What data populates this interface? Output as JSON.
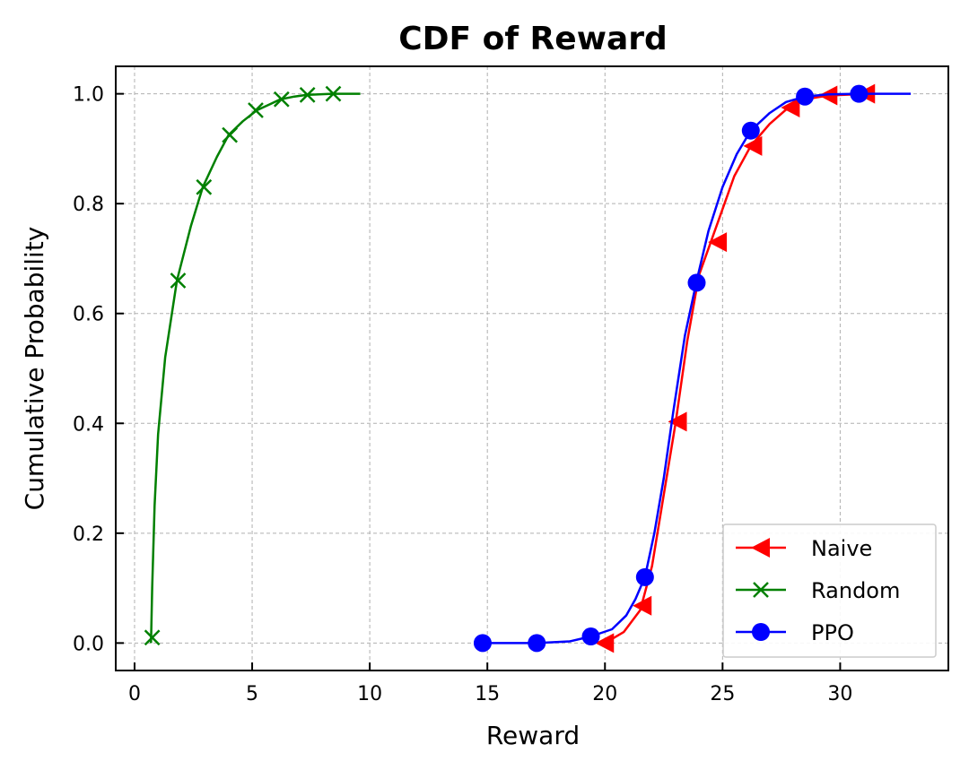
{
  "chart_data": {
    "type": "line",
    "title": "CDF of Reward",
    "xlabel": "Reward",
    "ylabel": "Cumulative Probability",
    "xlim": [
      -0.8,
      34.6
    ],
    "ylim": [
      -0.05,
      1.05
    ],
    "xticks": [
      0,
      5,
      10,
      15,
      20,
      25,
      30
    ],
    "yticks": [
      0.0,
      0.2,
      0.4,
      0.6,
      0.8,
      1.0
    ],
    "xtick_labels": [
      "0",
      "5",
      "10",
      "15",
      "20",
      "25",
      "30"
    ],
    "ytick_labels": [
      "0.0",
      "0.2",
      "0.4",
      "0.6",
      "0.8",
      "1.0"
    ],
    "grid": true,
    "legend_position": "lower-right",
    "series": [
      {
        "name": "Naive",
        "color": "#ff0000",
        "marker": "triangle-left",
        "curve": [
          [
            20.0,
            0.0
          ],
          [
            20.8,
            0.02
          ],
          [
            21.5,
            0.06
          ],
          [
            22.0,
            0.14
          ],
          [
            22.5,
            0.27
          ],
          [
            23.0,
            0.4
          ],
          [
            23.5,
            0.55
          ],
          [
            24.0,
            0.67
          ],
          [
            24.5,
            0.73
          ],
          [
            25.0,
            0.79
          ],
          [
            25.5,
            0.85
          ],
          [
            26.2,
            0.905
          ],
          [
            27.0,
            0.945
          ],
          [
            27.8,
            0.975
          ],
          [
            28.5,
            0.99
          ],
          [
            29.5,
            0.997
          ],
          [
            31.2,
            1.0
          ]
        ],
        "markers": [
          [
            20.0,
            0.0
          ],
          [
            21.6,
            0.068
          ],
          [
            23.1,
            0.403
          ],
          [
            24.8,
            0.73
          ],
          [
            26.3,
            0.905
          ],
          [
            27.9,
            0.975
          ],
          [
            29.5,
            0.997
          ],
          [
            31.1,
            1.0
          ]
        ]
      },
      {
        "name": "Random",
        "color": "#008000",
        "marker": "x",
        "curve": [
          [
            0.7,
            0.0
          ],
          [
            0.75,
            0.1
          ],
          [
            0.85,
            0.25
          ],
          [
            1.0,
            0.38
          ],
          [
            1.3,
            0.52
          ],
          [
            1.8,
            0.66
          ],
          [
            2.4,
            0.76
          ],
          [
            2.9,
            0.83
          ],
          [
            3.5,
            0.885
          ],
          [
            4.0,
            0.925
          ],
          [
            4.6,
            0.95
          ],
          [
            5.2,
            0.97
          ],
          [
            5.8,
            0.982
          ],
          [
            6.2,
            0.99
          ],
          [
            6.8,
            0.995
          ],
          [
            7.3,
            0.998
          ],
          [
            8.4,
            1.0
          ],
          [
            9.6,
            1.0
          ]
        ],
        "markers": [
          [
            0.75,
            0.01
          ],
          [
            1.85,
            0.66
          ],
          [
            2.95,
            0.83
          ],
          [
            4.05,
            0.925
          ],
          [
            5.15,
            0.97
          ],
          [
            6.25,
            0.99
          ],
          [
            7.35,
            0.998
          ],
          [
            8.45,
            1.0
          ]
        ]
      },
      {
        "name": "PPO",
        "color": "#0000ff",
        "marker": "circle",
        "curve": [
          [
            14.8,
            0.0
          ],
          [
            17.1,
            0.0
          ],
          [
            18.5,
            0.003
          ],
          [
            19.4,
            0.012
          ],
          [
            20.3,
            0.025
          ],
          [
            20.9,
            0.05
          ],
          [
            21.3,
            0.08
          ],
          [
            21.7,
            0.12
          ],
          [
            22.1,
            0.2
          ],
          [
            22.5,
            0.3
          ],
          [
            22.9,
            0.42
          ],
          [
            23.4,
            0.56
          ],
          [
            23.9,
            0.66
          ],
          [
            24.4,
            0.75
          ],
          [
            25.0,
            0.83
          ],
          [
            25.6,
            0.89
          ],
          [
            26.2,
            0.933
          ],
          [
            27.0,
            0.965
          ],
          [
            27.7,
            0.985
          ],
          [
            28.5,
            0.995
          ],
          [
            29.5,
            0.999
          ],
          [
            30.8,
            1.0
          ],
          [
            33.0,
            1.0
          ]
        ],
        "markers": [
          [
            14.8,
            0.0
          ],
          [
            17.1,
            0.0
          ],
          [
            19.4,
            0.012
          ],
          [
            21.7,
            0.12
          ],
          [
            23.9,
            0.656
          ],
          [
            26.2,
            0.933
          ],
          [
            28.5,
            0.995
          ],
          [
            30.8,
            1.0
          ]
        ]
      }
    ]
  }
}
